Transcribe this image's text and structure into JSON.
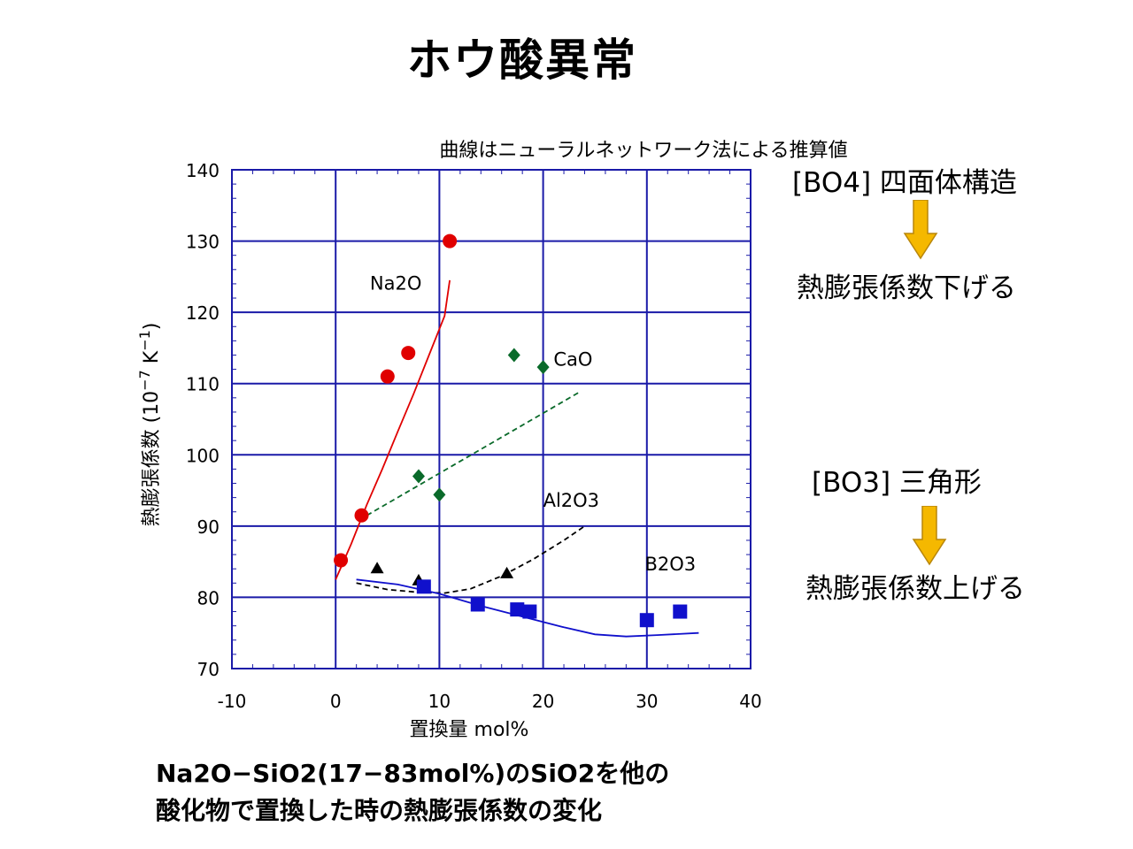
{
  "slide": {
    "title": "ホウ酸異常",
    "right_panel": {
      "bo4_label": "[BO4]  四面体構造",
      "bo4_effect": "熱膨張係数下げる",
      "bo3_label": "[BO3]  三角形",
      "bo3_effect": "熱膨張係数上げる",
      "arrow_color": "#F5B800"
    },
    "caption_line1": "Na2O−SiO2(17−83mol%)のSiO2を他の",
    "caption_line2": "酸化物で置換した時の熱膨張係数の変化"
  },
  "chart_data": {
    "type": "scatter",
    "title": "曲線はニューラルネットワーク法による推算値",
    "xlabel": "置換量  mol%",
    "ylabel_main": "熱膨張係数 (10",
    "ylabel_exp1": "−7",
    "ylabel_unit": " K",
    "ylabel_exp2": "−1",
    "ylabel_close": ")",
    "xlim": [
      -10,
      40
    ],
    "ylim": [
      70,
      140
    ],
    "xticks": [
      -10,
      0,
      10,
      20,
      30,
      40
    ],
    "yticks": [
      70,
      80,
      90,
      100,
      110,
      120,
      130,
      140
    ],
    "grid": true,
    "grid_color": "#1a1aa8",
    "series": [
      {
        "name": "Na2O",
        "color": "#e00000",
        "marker": "circle",
        "points": [
          [
            0.5,
            85.2
          ],
          [
            2.5,
            91.5
          ],
          [
            5.0,
            111.0
          ],
          [
            7.0,
            114.3
          ],
          [
            11.0,
            130.0
          ]
        ],
        "curve": [
          [
            0.0,
            82.5
          ],
          [
            1.5,
            87.5
          ],
          [
            3.0,
            93.0
          ],
          [
            4.5,
            98.0
          ],
          [
            6.0,
            103.3
          ],
          [
            7.5,
            108.5
          ],
          [
            9.0,
            114.0
          ],
          [
            10.5,
            119.5
          ],
          [
            11.0,
            124.5
          ]
        ],
        "curve_dash": false,
        "label_x": 3.3,
        "label_y": 123.2
      },
      {
        "name": "CaO",
        "color": "#0a6a2a",
        "marker": "diamond",
        "points": [
          [
            8.0,
            97.0
          ],
          [
            10.0,
            94.4
          ],
          [
            17.2,
            114.0
          ],
          [
            20.0,
            112.3
          ]
        ],
        "curve": [
          [
            3.0,
            91.5
          ],
          [
            23.5,
            108.8
          ]
        ],
        "curve_dash": true,
        "label_x": 21.0,
        "label_y": 112.5
      },
      {
        "name": "Al2O3",
        "color": "#000000",
        "marker": "triangle",
        "points": [
          [
            4.0,
            84.0
          ],
          [
            8.0,
            82.3
          ],
          [
            16.5,
            83.3
          ]
        ],
        "curve": [
          [
            2.0,
            82.0
          ],
          [
            5.0,
            81.1
          ],
          [
            8.0,
            80.7
          ],
          [
            10.5,
            80.6
          ],
          [
            13.0,
            81.2
          ],
          [
            16.0,
            83.0
          ],
          [
            19.0,
            85.3
          ],
          [
            22.0,
            88.0
          ],
          [
            24.0,
            90.0
          ]
        ],
        "curve_dash": true,
        "label_x": 20.0,
        "label_y": 92.7
      },
      {
        "name": "B2O3",
        "color": "#1010cc",
        "marker": "square",
        "points": [
          [
            8.5,
            81.5
          ],
          [
            13.7,
            79.0
          ],
          [
            17.5,
            78.3
          ],
          [
            18.7,
            78.0
          ],
          [
            30.0,
            76.8
          ],
          [
            33.2,
            78.0
          ]
        ],
        "curve": [
          [
            2.0,
            82.5
          ],
          [
            6.0,
            81.8
          ],
          [
            10.0,
            80.5
          ],
          [
            14.0,
            78.8
          ],
          [
            18.0,
            77.3
          ],
          [
            22.0,
            75.8
          ],
          [
            25.0,
            74.8
          ],
          [
            28.0,
            74.5
          ],
          [
            31.0,
            74.7
          ],
          [
            35.0,
            75.0
          ]
        ],
        "curve_dash": false,
        "label_x": 29.8,
        "label_y": 83.8
      }
    ]
  }
}
